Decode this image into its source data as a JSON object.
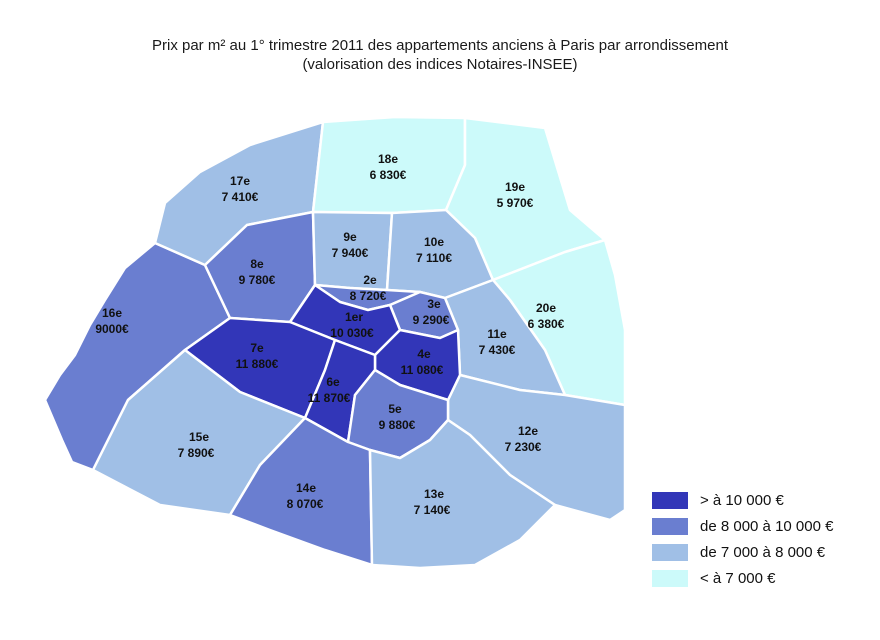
{
  "title": {
    "line1": "Prix par m² au 1° trimestre 2011 des appartements anciens à Paris par arrondissement",
    "line2": "(valorisation des indices Notaires-INSEE)"
  },
  "colors": {
    "c1": "#3236b8",
    "c2": "#6a7ed0",
    "c3": "#a0bfe6",
    "c4": "#ccfafa"
  },
  "arrondissements": [
    {
      "name": "1er",
      "price": "10 030€",
      "class": "c1"
    },
    {
      "name": "2e",
      "price": "8 720€",
      "class": "c2"
    },
    {
      "name": "3e",
      "price": "9 290€",
      "class": "c2"
    },
    {
      "name": "4e",
      "price": "11 080€",
      "class": "c1"
    },
    {
      "name": "5e",
      "price": "9 880€",
      "class": "c2"
    },
    {
      "name": "6e",
      "price": "11 870€",
      "class": "c1"
    },
    {
      "name": "7e",
      "price": "11 880€",
      "class": "c1"
    },
    {
      "name": "8e",
      "price": "9 780€",
      "class": "c2"
    },
    {
      "name": "9e",
      "price": "7 940€",
      "class": "c3"
    },
    {
      "name": "10e",
      "price": "7 110€",
      "class": "c3"
    },
    {
      "name": "11e",
      "price": "7 430€",
      "class": "c3"
    },
    {
      "name": "12e",
      "price": "7 230€",
      "class": "c3"
    },
    {
      "name": "13e",
      "price": "7 140€",
      "class": "c3"
    },
    {
      "name": "14e",
      "price": "8 070€",
      "class": "c2"
    },
    {
      "name": "15e",
      "price": "7 890€",
      "class": "c3"
    },
    {
      "name": "16e",
      "price": "9000€",
      "class": "c2"
    },
    {
      "name": "17e",
      "price": "7 410€",
      "class": "c3"
    },
    {
      "name": "18e",
      "price": "6 830€",
      "class": "c4"
    },
    {
      "name": "19e",
      "price": "5 970€",
      "class": "c4"
    },
    {
      "name": "20e",
      "price": "6 380€",
      "class": "c4"
    }
  ],
  "legend": [
    {
      "label": "> à 10 000 €",
      "class": "c1"
    },
    {
      "label": "de 8 000 à 10 000 €",
      "class": "c2"
    },
    {
      "label": "de 7 000 à 8 000 €",
      "class": "c3"
    },
    {
      "label": "< à 7 000 €",
      "class": "c4"
    }
  ]
}
